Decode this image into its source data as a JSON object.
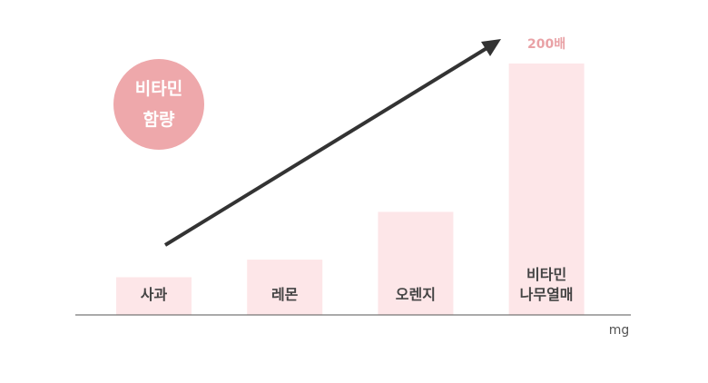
{
  "chart_data": {
    "type": "bar",
    "annotation": "비타민\n함량",
    "categories": [
      "사과",
      "레몬",
      "오렌지",
      "비타민\n나무열매"
    ],
    "values": [
      30,
      44,
      82,
      200
    ],
    "value_labels": [
      null,
      null,
      null,
      "200배"
    ],
    "color": "#fde6e8",
    "ylim": [
      0,
      200
    ],
    "unit": "mg"
  }
}
